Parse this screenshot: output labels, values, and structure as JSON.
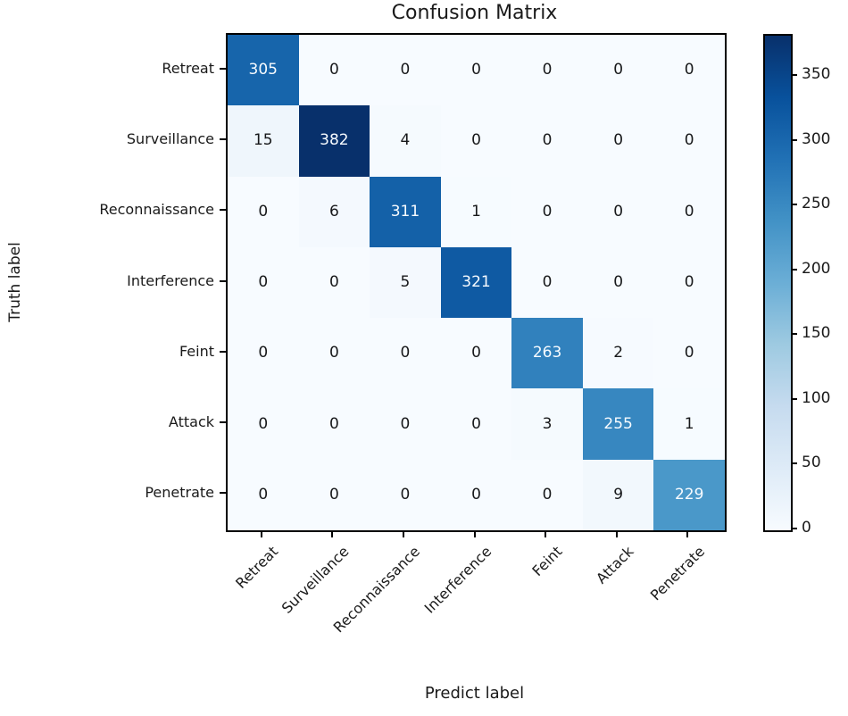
{
  "chart_data": {
    "type": "heatmap",
    "title": "Confusion Matrix",
    "xlabel": "Predict label",
    "ylabel": "Truth label",
    "categories": [
      "Retreat",
      "Surveillance",
      "Reconnaissance",
      "Interference",
      "Feint",
      "Attack",
      "Penetrate"
    ],
    "matrix": [
      [
        305,
        0,
        0,
        0,
        0,
        0,
        0
      ],
      [
        15,
        382,
        4,
        0,
        0,
        0,
        0
      ],
      [
        0,
        6,
        311,
        1,
        0,
        0,
        0
      ],
      [
        0,
        0,
        5,
        321,
        0,
        0,
        0
      ],
      [
        0,
        0,
        0,
        0,
        263,
        2,
        0
      ],
      [
        0,
        0,
        0,
        0,
        3,
        255,
        1
      ],
      [
        0,
        0,
        0,
        0,
        0,
        9,
        229
      ]
    ],
    "vmin": 0,
    "vmax": 382,
    "colormap": "Blues",
    "colormap_stops": [
      "#f7fbff",
      "#deebf7",
      "#c6dbef",
      "#9ecae1",
      "#6baed6",
      "#4292c6",
      "#2171b5",
      "#08519c",
      "#08306b"
    ],
    "colorbar_ticks": [
      0,
      50,
      100,
      150,
      200,
      250,
      300,
      350
    ],
    "colorbar_position": "right",
    "grid": false,
    "cell_text_colors": {
      "light": "#f7fbff",
      "dark": "#17181a"
    }
  }
}
